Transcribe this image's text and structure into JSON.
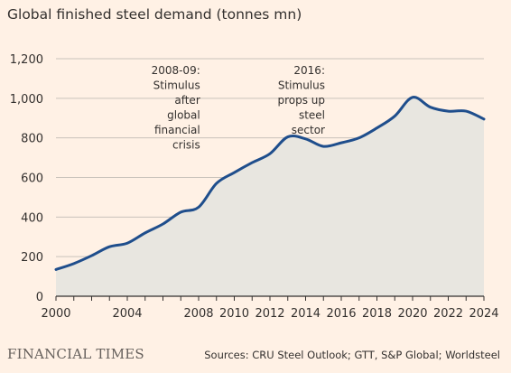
{
  "chart_data": {
    "type": "area",
    "title": "Global finished steel demand (tonnes mn)",
    "xlabel": "",
    "ylabel": "",
    "xlim": [
      2000,
      2024
    ],
    "ylim": [
      0,
      1200
    ],
    "x_ticks": [
      2000,
      2004,
      2008,
      2010,
      2012,
      2014,
      2016,
      2018,
      2020,
      2022,
      2024
    ],
    "y_ticks": [
      0,
      200,
      400,
      600,
      800,
      1000,
      1200
    ],
    "y_tick_labels": [
      "0",
      "200",
      "400",
      "600",
      "800",
      "1,000",
      "1,200"
    ],
    "x": [
      2000,
      2001,
      2002,
      2003,
      2004,
      2005,
      2006,
      2007,
      2008,
      2009,
      2010,
      2011,
      2012,
      2013,
      2014,
      2015,
      2016,
      2017,
      2018,
      2019,
      2020,
      2021,
      2022,
      2023,
      2024
    ],
    "series": [
      {
        "values": [
          135,
          165,
          205,
          250,
          268,
          320,
          365,
          425,
          450,
          570,
          625,
          675,
          720,
          805,
          795,
          757,
          775,
          800,
          850,
          910,
          1005,
          955,
          935,
          935,
          895
        ]
      }
    ],
    "annotations": [
      {
        "lines": [
          "2008-09:",
          "Stimulus",
          "after",
          "global",
          "financial",
          "crisis"
        ],
        "x": 2009
      },
      {
        "lines": [
          "2016:",
          "Stimulus",
          "props up",
          "steel",
          "sector"
        ],
        "x": 2016
      }
    ],
    "grid": true,
    "colors": {
      "line": "#1f4e8c",
      "fill": "#e8e6e0",
      "grid": "#c9c2bb",
      "axis": "#33302e"
    }
  },
  "footer": {
    "brand": "FINANCIAL TIMES",
    "source": "Sources: CRU Steel Outlook; GTT, S&P Global; Worldsteel"
  }
}
